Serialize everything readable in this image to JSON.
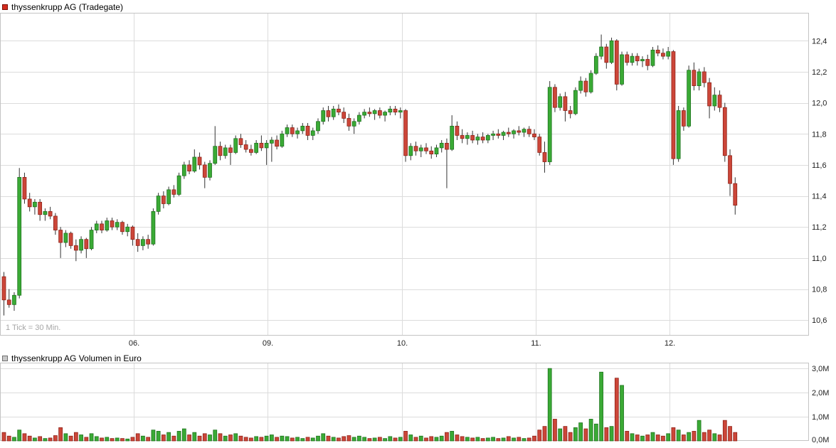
{
  "price_chart": {
    "title": "thyssenkrupp AG (Tradegate)",
    "tick_note": "1 Tick = 30 Min.",
    "legend_color": "#d42b1e",
    "legend_border": "#7a0f08",
    "y_axis_labels": [
      "10,6",
      "10,8",
      "11,0",
      "11,2",
      "11,4",
      "11,6",
      "11,8",
      "12,0",
      "12,2",
      "12,4"
    ]
  },
  "volume_chart": {
    "title": "thyssenkrupp AG Volumen in Euro",
    "legend_color": "#c8c8c8",
    "legend_border": "#707070",
    "y_axis_labels": [
      "0,0M",
      "1,0M",
      "2,0M",
      "3,0M"
    ]
  },
  "chart_data": [
    {
      "type": "candlestick",
      "title": "thyssenkrupp AG (Tradegate)",
      "interval_note": "1 Tick = 30 Min.",
      "ylim": [
        10.5,
        12.58
      ],
      "y_ticks": [
        10.6,
        10.8,
        11.0,
        11.2,
        11.4,
        11.6,
        11.8,
        12.0,
        12.2,
        12.4
      ],
      "day_labels": [
        "06.",
        "09.",
        "10.",
        "11.",
        "12."
      ],
      "day_start_indices": [
        26,
        52,
        78,
        104,
        130
      ],
      "colors": {
        "up": "#3aaa35",
        "up_border": "#1c701c",
        "down": "#cc4639",
        "down_border": "#8c1f15",
        "wick": "#333333"
      },
      "ohlc": [
        [
          10.88,
          10.91,
          10.63,
          10.73
        ],
        [
          10.73,
          10.8,
          10.68,
          10.7
        ],
        [
          10.7,
          10.78,
          10.66,
          10.76
        ],
        [
          10.76,
          11.58,
          10.74,
          11.52
        ],
        [
          11.52,
          11.55,
          11.35,
          11.38
        ],
        [
          11.38,
          11.42,
          11.3,
          11.33
        ],
        [
          11.33,
          11.38,
          11.28,
          11.36
        ],
        [
          11.36,
          11.38,
          11.24,
          11.28
        ],
        [
          11.28,
          11.32,
          11.24,
          11.3
        ],
        [
          11.3,
          11.33,
          11.25,
          11.27
        ],
        [
          11.27,
          11.29,
          11.15,
          11.18
        ],
        [
          11.18,
          11.2,
          11.0,
          11.1
        ],
        [
          11.1,
          11.18,
          11.07,
          11.16
        ],
        [
          11.16,
          11.17,
          11.06,
          11.08
        ],
        [
          11.08,
          11.12,
          10.98,
          11.05
        ],
        [
          11.05,
          11.14,
          11.03,
          11.12
        ],
        [
          11.12,
          11.13,
          11.0,
          11.06
        ],
        [
          11.06,
          11.2,
          11.05,
          11.18
        ],
        [
          11.18,
          11.24,
          11.16,
          11.22
        ],
        [
          11.22,
          11.24,
          11.16,
          11.18
        ],
        [
          11.18,
          11.26,
          11.17,
          11.24
        ],
        [
          11.24,
          11.26,
          11.18,
          11.2
        ],
        [
          11.2,
          11.25,
          11.18,
          11.23
        ],
        [
          11.23,
          11.24,
          11.15,
          11.17
        ],
        [
          11.17,
          11.22,
          11.14,
          11.2
        ],
        [
          11.2,
          11.21,
          11.08,
          11.12
        ],
        [
          11.12,
          11.16,
          11.04,
          11.08
        ],
        [
          11.08,
          11.14,
          11.05,
          11.12
        ],
        [
          11.12,
          11.15,
          11.06,
          11.09
        ],
        [
          11.09,
          11.32,
          11.08,
          11.3
        ],
        [
          11.3,
          11.42,
          11.28,
          11.4
        ],
        [
          11.4,
          11.43,
          11.32,
          11.35
        ],
        [
          11.35,
          11.46,
          11.34,
          11.44
        ],
        [
          11.44,
          11.47,
          11.39,
          11.41
        ],
        [
          11.41,
          11.55,
          11.4,
          11.53
        ],
        [
          11.53,
          11.62,
          11.51,
          11.6
        ],
        [
          11.6,
          11.63,
          11.54,
          11.56
        ],
        [
          11.56,
          11.7,
          11.55,
          11.65
        ],
        [
          11.65,
          11.68,
          11.57,
          11.6
        ],
        [
          11.6,
          11.62,
          11.45,
          11.52
        ],
        [
          11.52,
          11.63,
          11.5,
          11.61
        ],
        [
          11.61,
          11.85,
          11.6,
          11.72
        ],
        [
          11.72,
          11.75,
          11.63,
          11.66
        ],
        [
          11.66,
          11.73,
          11.64,
          11.71
        ],
        [
          11.71,
          11.73,
          11.6,
          11.68
        ],
        [
          11.68,
          11.79,
          11.67,
          11.77
        ],
        [
          11.77,
          11.8,
          11.71,
          11.73
        ],
        [
          11.73,
          11.76,
          11.68,
          11.7
        ],
        [
          11.7,
          11.73,
          11.66,
          11.68
        ],
        [
          11.68,
          11.76,
          11.67,
          11.74
        ],
        [
          11.74,
          11.79,
          11.69,
          11.71
        ],
        [
          11.71,
          11.76,
          11.6,
          11.74
        ],
        [
          11.74,
          11.78,
          11.62,
          11.76
        ],
        [
          11.76,
          11.79,
          11.7,
          11.72
        ],
        [
          11.72,
          11.82,
          11.71,
          11.8
        ],
        [
          11.8,
          11.86,
          11.78,
          11.84
        ],
        [
          11.84,
          11.86,
          11.78,
          11.8
        ],
        [
          11.8,
          11.84,
          11.77,
          11.82
        ],
        [
          11.82,
          11.87,
          11.8,
          11.85
        ],
        [
          11.85,
          11.87,
          11.76,
          11.79
        ],
        [
          11.79,
          11.84,
          11.76,
          11.82
        ],
        [
          11.82,
          11.9,
          11.8,
          11.88
        ],
        [
          11.88,
          11.97,
          11.86,
          11.95
        ],
        [
          11.95,
          11.98,
          11.88,
          11.91
        ],
        [
          11.91,
          11.98,
          11.89,
          11.96
        ],
        [
          11.96,
          11.99,
          11.92,
          11.94
        ],
        [
          11.94,
          11.97,
          11.87,
          11.9
        ],
        [
          11.9,
          11.93,
          11.82,
          11.85
        ],
        [
          11.85,
          11.9,
          11.8,
          11.88
        ],
        [
          11.88,
          11.94,
          11.86,
          11.92
        ],
        [
          11.92,
          11.96,
          11.9,
          11.94
        ],
        [
          11.94,
          11.97,
          11.91,
          11.93
        ],
        [
          11.93,
          11.96,
          11.89,
          11.95
        ],
        [
          11.95,
          11.97,
          11.9,
          11.92
        ],
        [
          11.92,
          11.95,
          11.88,
          11.94
        ],
        [
          11.94,
          11.98,
          11.92,
          11.96
        ],
        [
          11.96,
          11.98,
          11.92,
          11.94
        ],
        [
          11.94,
          11.97,
          11.9,
          11.95
        ],
        [
          11.95,
          11.96,
          11.62,
          11.66
        ],
        [
          11.66,
          11.74,
          11.63,
          11.72
        ],
        [
          11.72,
          11.75,
          11.66,
          11.69
        ],
        [
          11.69,
          11.73,
          11.65,
          11.71
        ],
        [
          11.71,
          11.74,
          11.67,
          11.69
        ],
        [
          11.69,
          11.72,
          11.64,
          11.67
        ],
        [
          11.67,
          11.73,
          11.65,
          11.71
        ],
        [
          11.71,
          11.76,
          11.68,
          11.74
        ],
        [
          11.74,
          11.77,
          11.45,
          11.7
        ],
        [
          11.7,
          11.92,
          11.69,
          11.85
        ],
        [
          11.85,
          11.88,
          11.76,
          11.79
        ],
        [
          11.79,
          11.83,
          11.74,
          11.77
        ],
        [
          11.77,
          11.81,
          11.73,
          11.79
        ],
        [
          11.79,
          11.82,
          11.74,
          11.76
        ],
        [
          11.76,
          11.8,
          11.73,
          11.78
        ],
        [
          11.78,
          11.81,
          11.74,
          11.76
        ],
        [
          11.76,
          11.8,
          11.74,
          11.79
        ],
        [
          11.79,
          11.82,
          11.76,
          11.8
        ],
        [
          11.8,
          11.83,
          11.77,
          11.79
        ],
        [
          11.79,
          11.82,
          11.76,
          11.81
        ],
        [
          11.81,
          11.84,
          11.78,
          11.8
        ],
        [
          11.8,
          11.83,
          11.77,
          11.82
        ],
        [
          11.82,
          11.85,
          11.79,
          11.81
        ],
        [
          11.81,
          11.84,
          11.78,
          11.83
        ],
        [
          11.83,
          11.85,
          11.78,
          11.8
        ],
        [
          11.8,
          11.83,
          11.76,
          11.78
        ],
        [
          11.78,
          11.8,
          11.66,
          11.68
        ],
        [
          11.68,
          11.75,
          11.55,
          11.62
        ],
        [
          11.62,
          12.14,
          11.6,
          12.1
        ],
        [
          12.1,
          12.12,
          11.94,
          11.97
        ],
        [
          11.97,
          12.06,
          11.95,
          12.04
        ],
        [
          12.04,
          12.07,
          11.88,
          11.95
        ],
        [
          11.95,
          11.98,
          11.9,
          11.93
        ],
        [
          11.93,
          12.1,
          11.92,
          12.08
        ],
        [
          12.08,
          12.17,
          12.06,
          12.14
        ],
        [
          12.14,
          12.16,
          12.04,
          12.07
        ],
        [
          12.07,
          12.21,
          12.06,
          12.19
        ],
        [
          12.19,
          12.32,
          12.18,
          12.3
        ],
        [
          12.3,
          12.44,
          12.28,
          12.36
        ],
        [
          12.36,
          12.38,
          12.22,
          12.26
        ],
        [
          12.26,
          12.42,
          12.25,
          12.4
        ],
        [
          12.4,
          12.41,
          12.08,
          12.12
        ],
        [
          12.12,
          12.33,
          12.11,
          12.31
        ],
        [
          12.31,
          12.33,
          12.24,
          12.26
        ],
        [
          12.26,
          12.32,
          12.24,
          12.3
        ],
        [
          12.3,
          12.32,
          12.24,
          12.27
        ],
        [
          12.27,
          12.3,
          12.23,
          12.28
        ],
        [
          12.28,
          12.31,
          12.21,
          12.24
        ],
        [
          12.24,
          12.36,
          12.23,
          12.34
        ],
        [
          12.34,
          12.37,
          12.3,
          12.32
        ],
        [
          12.32,
          12.35,
          12.28,
          12.3
        ],
        [
          12.3,
          12.36,
          12.28,
          12.33
        ],
        [
          12.33,
          12.34,
          11.6,
          11.64
        ],
        [
          11.64,
          11.98,
          11.62,
          11.95
        ],
        [
          11.95,
          11.97,
          11.82,
          11.85
        ],
        [
          11.85,
          12.24,
          11.84,
          12.21
        ],
        [
          12.21,
          12.26,
          12.08,
          12.11
        ],
        [
          12.11,
          12.22,
          12.08,
          12.2
        ],
        [
          12.2,
          12.23,
          12.1,
          12.13
        ],
        [
          12.13,
          12.16,
          11.9,
          11.98
        ],
        [
          11.98,
          12.1,
          11.95,
          12.05
        ],
        [
          12.05,
          12.08,
          11.94,
          11.97
        ],
        [
          11.97,
          12.0,
          11.62,
          11.66
        ],
        [
          11.66,
          11.7,
          11.4,
          11.48
        ],
        [
          11.48,
          11.52,
          11.28,
          11.34
        ]
      ]
    },
    {
      "type": "bar",
      "title": "thyssenkrupp AG Volumen in Euro",
      "unit": "millions EUR",
      "ylim": [
        0,
        3.24
      ],
      "y_ticks": [
        0,
        1,
        2,
        3
      ],
      "values": [
        0.35,
        0.2,
        0.15,
        0.45,
        0.3,
        0.2,
        0.12,
        0.18,
        0.1,
        0.12,
        0.22,
        0.55,
        0.3,
        0.2,
        0.35,
        0.25,
        0.15,
        0.3,
        0.18,
        0.12,
        0.15,
        0.1,
        0.12,
        0.1,
        0.08,
        0.15,
        0.3,
        0.2,
        0.15,
        0.45,
        0.4,
        0.25,
        0.35,
        0.2,
        0.4,
        0.5,
        0.25,
        0.35,
        0.2,
        0.3,
        0.25,
        0.45,
        0.3,
        0.2,
        0.25,
        0.3,
        0.2,
        0.15,
        0.12,
        0.18,
        0.15,
        0.2,
        0.25,
        0.15,
        0.2,
        0.18,
        0.12,
        0.15,
        0.1,
        0.15,
        0.12,
        0.2,
        0.3,
        0.2,
        0.15,
        0.12,
        0.18,
        0.22,
        0.15,
        0.2,
        0.15,
        0.1,
        0.12,
        0.15,
        0.1,
        0.18,
        0.12,
        0.15,
        0.4,
        0.25,
        0.15,
        0.2,
        0.12,
        0.18,
        0.15,
        0.2,
        0.35,
        0.4,
        0.25,
        0.18,
        0.15,
        0.12,
        0.15,
        0.1,
        0.12,
        0.15,
        0.1,
        0.12,
        0.18,
        0.12,
        0.15,
        0.1,
        0.12,
        0.2,
        0.45,
        0.6,
        3.0,
        0.9,
        0.5,
        0.6,
        0.35,
        0.55,
        0.75,
        0.5,
        0.9,
        0.7,
        2.85,
        0.55,
        0.6,
        2.6,
        2.3,
        0.4,
        0.3,
        0.25,
        0.2,
        0.25,
        0.35,
        0.25,
        0.2,
        0.3,
        0.55,
        0.45,
        0.25,
        0.35,
        0.4,
        0.85,
        0.35,
        0.45,
        0.3,
        0.25,
        0.85,
        0.6,
        0.35
      ]
    }
  ]
}
